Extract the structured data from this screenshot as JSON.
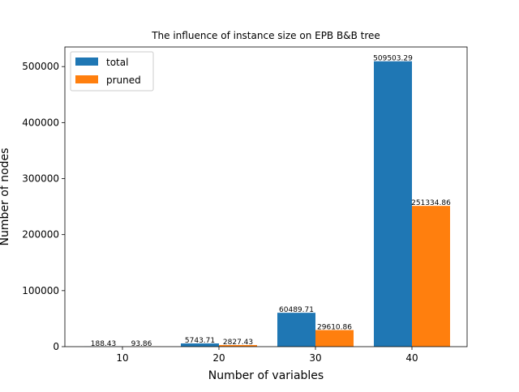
{
  "chart_data": {
    "type": "bar",
    "title": "The influence of instance size on EPB B&B tree",
    "xlabel": "Number of variables",
    "ylabel": "Number of nodes",
    "categories": [
      "10",
      "20",
      "30",
      "40"
    ],
    "series": [
      {
        "name": "total",
        "color": "#1f77b4",
        "values": [
          188.43,
          5743.71,
          60489.71,
          509503.29
        ],
        "labels": [
          "188.43",
          "5743.71",
          "60489.71",
          "509503.29"
        ]
      },
      {
        "name": "pruned",
        "color": "#ff7f0e",
        "values": [
          93.86,
          2827.43,
          29610.86,
          251334.86
        ],
        "labels": [
          "93.86",
          "2827.43",
          "29610.86",
          "251334.86"
        ]
      }
    ],
    "ylim": [
      0,
      535000
    ],
    "yticks": [
      0,
      100000,
      200000,
      300000,
      400000,
      500000
    ],
    "ytick_labels": [
      "0",
      "100000",
      "200000",
      "300000",
      "400000",
      "500000"
    ],
    "grid": false,
    "legend_position": "top-left"
  }
}
